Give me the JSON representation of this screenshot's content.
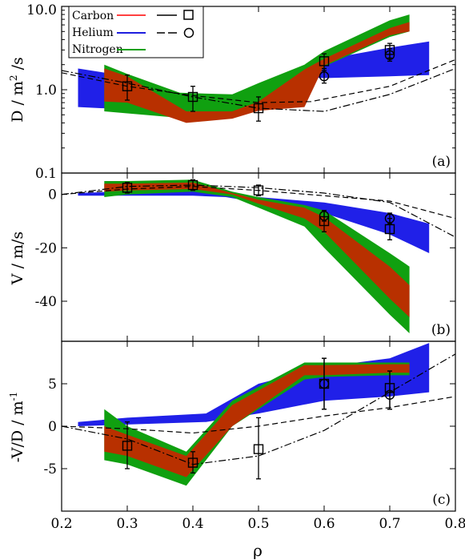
{
  "chart_data": [
    {
      "panel_label": "(a)",
      "type": "area",
      "ylabel": "D / m",
      "ylabel_sup": "2",
      "ylabel_suffix": " /s",
      "yscale": "log",
      "ylim": [
        0.1,
        10.0
      ],
      "xlim": [
        0.2,
        0.8
      ],
      "yticks": [
        "0.1",
        "1.0",
        "10.0"
      ],
      "yticks_values": [
        0.1,
        1.0,
        10.0
      ],
      "legend": {
        "placement": "top-left",
        "entries": [
          {
            "name": "Carbon",
            "color": "#ff4040",
            "dash_style": "dashed",
            "marker": "square"
          },
          {
            "name": "Helium",
            "color": "#1f1fdf",
            "dash_style": "dashed-long",
            "marker": "circle"
          },
          {
            "name": "Nitrogen",
            "color": "#10a010"
          }
        ]
      },
      "series": [
        {
          "name": "Helium",
          "color": "#2020e8",
          "x": [
            0.225,
            0.3,
            0.38,
            0.45,
            0.5,
            0.58,
            0.6,
            0.7,
            0.76
          ],
          "lower": [
            0.62,
            0.58,
            0.56,
            0.62,
            0.95,
            1.4,
            1.38,
            1.45,
            1.5
          ],
          "upper": [
            1.8,
            1.45,
            0.75,
            0.82,
            1.1,
            2.1,
            2.3,
            3.2,
            3.8
          ]
        },
        {
          "name": "Nitrogen",
          "color": "#10a010",
          "x": [
            0.265,
            0.3,
            0.38,
            0.46,
            0.5,
            0.57,
            0.6,
            0.7,
            0.73
          ],
          "lower": [
            0.55,
            0.52,
            0.46,
            0.48,
            0.62,
            0.75,
            1.9,
            4.3,
            5.0
          ],
          "upper": [
            2.0,
            1.55,
            0.92,
            0.88,
            1.2,
            2.0,
            2.9,
            6.8,
            8.0
          ]
        },
        {
          "name": "Carbon",
          "color": "#b83000",
          "x": [
            0.265,
            0.3,
            0.39,
            0.46,
            0.5,
            0.57,
            0.6,
            0.7,
            0.73
          ],
          "lower": [
            0.72,
            0.7,
            0.4,
            0.45,
            0.56,
            0.62,
            1.95,
            4.5,
            5.0
          ],
          "upper": [
            1.8,
            1.45,
            0.55,
            0.55,
            0.72,
            1.75,
            2.35,
            5.5,
            6.5
          ]
        }
      ],
      "model_lines": [
        {
          "name": "Carbon",
          "style": "dashed",
          "x": [
            0.2,
            0.3,
            0.4,
            0.5,
            0.58,
            0.7,
            0.8
          ],
          "y": [
            1.6,
            1.1,
            0.85,
            0.7,
            0.72,
            1.1,
            2.3
          ]
        },
        {
          "name": "Helium",
          "style": "dashdot",
          "x": [
            0.2,
            0.3,
            0.4,
            0.5,
            0.6,
            0.7,
            0.8
          ],
          "y": [
            1.7,
            1.2,
            0.82,
            0.6,
            0.55,
            0.88,
            1.8
          ]
        }
      ],
      "points": [
        {
          "marker": "square",
          "x": [
            0.3,
            0.4,
            0.5,
            0.6,
            0.7
          ],
          "y": [
            1.1,
            0.82,
            0.6,
            2.2,
            3.0
          ],
          "yerr_low": [
            0.75,
            0.55,
            0.42,
            1.7,
            2.4
          ],
          "yerr_high": [
            1.5,
            1.1,
            0.82,
            2.7,
            3.6
          ]
        },
        {
          "marker": "circle",
          "x": [
            0.6,
            0.7
          ],
          "y": [
            1.45,
            2.6
          ],
          "yerr_low": [
            1.2,
            2.2
          ],
          "yerr_high": [
            1.8,
            3.1
          ]
        }
      ]
    },
    {
      "panel_label": "(b)",
      "type": "area",
      "ylabel": "V / m/s",
      "ylim": [
        -55,
        8
      ],
      "xlim": [
        0.2,
        0.8
      ],
      "yticks": [
        "0",
        "-20",
        "-40"
      ],
      "yticks_values": [
        0,
        -20,
        -40
      ],
      "series": [
        {
          "name": "Helium",
          "color": "#2020e8",
          "x": [
            0.225,
            0.3,
            0.4,
            0.45,
            0.5,
            0.6,
            0.7,
            0.76
          ],
          "lower": [
            -0.5,
            -0.5,
            -0.5,
            -1.0,
            -3.0,
            -7.0,
            -15.0,
            -22.0
          ],
          "upper": [
            0.5,
            1.2,
            1.5,
            0.5,
            -1.0,
            -3.0,
            -7.0,
            -11.0
          ]
        },
        {
          "name": "Nitrogen",
          "color": "#10a010",
          "x": [
            0.265,
            0.3,
            0.4,
            0.46,
            0.5,
            0.57,
            0.6,
            0.7,
            0.73
          ],
          "lower": [
            -1.0,
            0.0,
            1.0,
            -1.0,
            -5.0,
            -12.0,
            -20.0,
            -45.0,
            -52.0
          ],
          "upper": [
            5.0,
            5.0,
            5.5,
            1.0,
            -1.0,
            -4.0,
            -6.0,
            -22.0,
            -27.0
          ]
        },
        {
          "name": "Carbon",
          "color": "#b83000",
          "x": [
            0.265,
            0.3,
            0.4,
            0.46,
            0.5,
            0.57,
            0.6,
            0.7,
            0.73
          ],
          "lower": [
            1.0,
            1.5,
            2.0,
            0.0,
            -3.5,
            -9.0,
            -14.0,
            -39.0,
            -46.0
          ],
          "upper": [
            4.0,
            4.0,
            4.5,
            0.5,
            -2.0,
            -5.0,
            -8.5,
            -27.0,
            -34.0
          ]
        }
      ],
      "model_lines": [
        {
          "name": "Carbon",
          "style": "dashed",
          "x": [
            0.2,
            0.3,
            0.4,
            0.5,
            0.6,
            0.7,
            0.8
          ],
          "y": [
            0,
            2.0,
            3.0,
            1.5,
            -0.5,
            -2.5,
            -9.0
          ]
        },
        {
          "name": "Helium",
          "style": "dashdot",
          "x": [
            0.2,
            0.3,
            0.4,
            0.5,
            0.6,
            0.7,
            0.8
          ],
          "y": [
            0,
            3.0,
            3.5,
            2.5,
            0.5,
            -3.0,
            -16.0
          ]
        }
      ],
      "points": [
        {
          "marker": "square",
          "x": [
            0.3,
            0.4,
            0.5,
            0.6,
            0.7
          ],
          "y": [
            2.5,
            3.5,
            1.5,
            -10.0,
            -13.0
          ],
          "yerr_low": [
            0.5,
            1.5,
            -0.5,
            -14.0,
            -17.0
          ],
          "yerr_high": [
            4.5,
            5.5,
            3.5,
            -6.0,
            -9.0
          ]
        },
        {
          "marker": "circle",
          "x": [
            0.6,
            0.7
          ],
          "y": [
            -8.0,
            -9.0
          ],
          "yerr_low": [
            -10.0,
            -11.0
          ],
          "yerr_high": [
            -6.0,
            -7.0
          ]
        }
      ]
    },
    {
      "panel_label": "(c)",
      "type": "area",
      "ylabel": "-V/D / m",
      "ylabel_sup": "-1",
      "ylim": [
        -10,
        10
      ],
      "xlim": [
        0.2,
        0.8
      ],
      "xlabel": "ρ",
      "xticks": [
        "0.2",
        "0.3",
        "0.4",
        "0.5",
        "0.6",
        "0.7",
        "0.8"
      ],
      "xticks_values": [
        0.2,
        0.3,
        0.4,
        0.5,
        0.6,
        0.7,
        0.8
      ],
      "yticks": [
        "5",
        "0",
        "-5"
      ],
      "yticks_values": [
        5,
        0,
        -5
      ],
      "series": [
        {
          "name": "Helium",
          "color": "#2020e8",
          "x": [
            0.225,
            0.3,
            0.42,
            0.5,
            0.6,
            0.7,
            0.76
          ],
          "lower": [
            0.0,
            0.2,
            0.5,
            1.5,
            3.0,
            3.5,
            4.0
          ],
          "upper": [
            0.5,
            1.0,
            1.5,
            5.0,
            7.0,
            8.0,
            9.8
          ]
        },
        {
          "name": "Nitrogen",
          "color": "#10a010",
          "x": [
            0.265,
            0.3,
            0.39,
            0.46,
            0.57,
            0.6,
            0.7,
            0.73
          ],
          "lower": [
            -4.0,
            -4.5,
            -7.0,
            0.0,
            5.5,
            5.8,
            6.0,
            6.0
          ],
          "upper": [
            2.0,
            0.0,
            -3.0,
            3.0,
            7.5,
            7.5,
            7.5,
            7.5
          ]
        },
        {
          "name": "Carbon",
          "color": "#b83000",
          "x": [
            0.265,
            0.3,
            0.39,
            0.46,
            0.57,
            0.6,
            0.7,
            0.73
          ],
          "lower": [
            -3.0,
            -3.5,
            -6.0,
            0.0,
            6.0,
            6.0,
            6.3,
            6.3
          ],
          "upper": [
            0.0,
            -1.0,
            -3.5,
            2.5,
            7.2,
            7.2,
            7.3,
            7.3
          ]
        }
      ],
      "model_lines": [
        {
          "name": "Carbon",
          "style": "dashed",
          "x": [
            0.2,
            0.3,
            0.4,
            0.5,
            0.6,
            0.7,
            0.8
          ],
          "y": [
            0,
            -0.3,
            -0.8,
            0.0,
            1.2,
            2.2,
            3.5
          ]
        },
        {
          "name": "Helium",
          "style": "dashdot",
          "x": [
            0.2,
            0.3,
            0.4,
            0.5,
            0.6,
            0.7,
            0.8
          ],
          "y": [
            0,
            -1.5,
            -4.5,
            -3.5,
            -0.5,
            4.0,
            8.5
          ]
        }
      ],
      "points": [
        {
          "marker": "square",
          "x": [
            0.3,
            0.4,
            0.5,
            0.6,
            0.7
          ],
          "y": [
            -2.3,
            -4.3,
            -2.7,
            5.0,
            4.5
          ],
          "yerr_low": [
            -5.0,
            -5.5,
            -6.2,
            2.0,
            2.0
          ],
          "yerr_high": [
            0.5,
            -3.0,
            1.0,
            8.0,
            6.5
          ]
        },
        {
          "marker": "circle",
          "x": [
            0.6,
            0.7
          ],
          "y": [
            5.0,
            3.7
          ],
          "yerr_low": [
            2.0,
            2.0
          ],
          "yerr_high": [
            8.0,
            6.5
          ]
        }
      ]
    }
  ]
}
